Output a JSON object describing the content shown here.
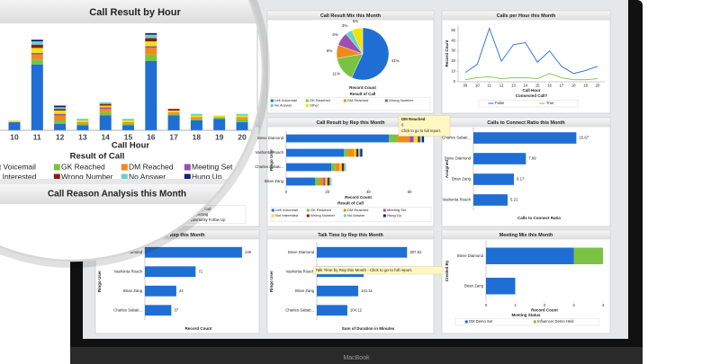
{
  "device_label": "MacBook",
  "chart_data": [
    {
      "type": "bar",
      "stacked": true,
      "title": "Call Result by Hour",
      "categories": [
        "10",
        "11",
        "12",
        "13",
        "14",
        "15",
        "16",
        "17",
        "18",
        "19",
        "20"
      ],
      "ylim": [
        0,
        60
      ],
      "xlabel": "Call Hour",
      "legend_title": "Result of Call",
      "series": [
        {
          "name": "Left Voicemail",
          "color": "#1f6ed4",
          "values": [
            5,
            40,
            4,
            3,
            9,
            3,
            42,
            9,
            6,
            7,
            5
          ]
        },
        {
          "name": "GK Reached",
          "color": "#7cc242",
          "values": [
            0,
            3,
            2,
            1,
            2,
            1,
            4,
            1,
            1,
            1,
            2
          ]
        },
        {
          "name": "DM Reached",
          "color": "#f08a1c",
          "values": [
            0,
            3,
            3,
            1,
            2,
            1,
            4,
            1,
            1,
            0,
            1
          ]
        },
        {
          "name": "Meeting Set",
          "color": "#9b4fb0",
          "values": [
            0,
            1,
            1,
            0,
            1,
            0,
            1,
            0,
            0,
            0,
            0
          ]
        },
        {
          "name": "Not Interested",
          "color": "#f2e20c",
          "values": [
            1,
            3,
            2,
            1,
            1,
            1,
            3,
            1,
            1,
            1,
            1
          ]
        },
        {
          "name": "Wrong Number",
          "color": "#8b1a1a",
          "values": [
            0,
            2,
            1,
            0,
            1,
            0,
            2,
            1,
            0,
            0,
            0
          ]
        },
        {
          "name": "No Answer",
          "color": "#63d6c4",
          "values": [
            0,
            2,
            1,
            1,
            1,
            1,
            2,
            0,
            1,
            0,
            1
          ]
        },
        {
          "name": "Hung Up",
          "color": "#15227a",
          "values": [
            0,
            1,
            1,
            0,
            0,
            0,
            1,
            0,
            0,
            0,
            0
          ]
        }
      ]
    },
    {
      "type": "pie",
      "title": "Call Result Mix this Month",
      "measure_label": "Record Count",
      "legend_title": "Result of Call",
      "categories": [
        "Left Voicemail",
        "GK Reached",
        "DM Reached",
        "Wrong Number",
        "No Answer",
        "Other"
      ],
      "values": [
        41,
        11,
        6,
        6,
        3,
        5
      ],
      "value_labels": [
        "41%",
        "11%",
        "6%",
        "6%",
        "3%",
        "5%"
      ],
      "colors": [
        "#1f6ed4",
        "#7cc242",
        "#f08a1c",
        "#9b4fb0",
        "#63d6c4",
        "#f2e20c"
      ]
    },
    {
      "type": "line",
      "title": "Calls per Hour this Month",
      "ylabel": "Record Count",
      "xlabel": "Call Hour",
      "legend_title": "Connected Call?",
      "x": [
        9,
        10,
        11,
        12,
        13,
        14,
        15,
        16,
        17,
        18,
        19,
        20
      ],
      "xlim": [
        8.4,
        20.6
      ],
      "xticks": [
        {
          "value": 9,
          "label": "09"
        },
        10,
        11,
        12,
        13,
        14,
        15,
        16,
        17,
        18,
        19,
        20
      ],
      "ylim": [
        0,
        55
      ],
      "yticks": [
        0,
        10,
        20,
        30,
        40,
        50
      ],
      "series": [
        {
          "name": "False",
          "color": "#1f6ed4",
          "values": [
            9,
            17,
            52,
            20,
            36,
            38,
            19,
            30,
            15,
            8,
            11,
            15
          ]
        },
        {
          "name": "True",
          "color": "#7cc242",
          "values": [
            2,
            4,
            5,
            3,
            4,
            4,
            3,
            8,
            4,
            2,
            2,
            3
          ]
        }
      ]
    },
    {
      "type": "bar",
      "title": "Call Reason Analysis this Month",
      "series": [
        {
          "name": "Incoming Call",
          "color": "#1f6ed4"
        },
        {
          "name": "Prospecting",
          "color": "#7cc242"
        },
        {
          "name": "Opportunity Follow Up",
          "color": "#f08a1c"
        }
      ]
    },
    {
      "type": "bar",
      "orientation": "horizontal",
      "stacked": true,
      "title": "Call Result by Rep this Month",
      "ylabel": "Ringo User",
      "xlabel": "Record Count",
      "legend_title": "Result of Call",
      "categories": [
        "Steve Diamond",
        "Vashonta Roach",
        "Charles Sabati...",
        "Brian Zang"
      ],
      "xlim": [
        0,
        70
      ],
      "xticks": [
        0,
        20,
        40,
        60
      ],
      "series": [
        {
          "name": "Left Voicemail",
          "color": "#1f6ed4",
          "values": [
            50,
            28,
            22,
            14
          ]
        },
        {
          "name": "GK Reached",
          "color": "#7cc242",
          "values": [
            4,
            2,
            2,
            2
          ]
        },
        {
          "name": "DM Reached",
          "color": "#f08a1c",
          "values": [
            6,
            3,
            2,
            2
          ]
        },
        {
          "name": "Meeting Set",
          "color": "#9b4fb0",
          "values": [
            2,
            0,
            0,
            1
          ]
        },
        {
          "name": "Not Interested",
          "color": "#f2e20c",
          "values": [
            2,
            1,
            1,
            1
          ]
        },
        {
          "name": "Wrong Number",
          "color": "#8b1a1a",
          "values": [
            1,
            1,
            1,
            1
          ]
        },
        {
          "name": "No Answer",
          "color": "#63d6c4",
          "values": [
            1,
            1,
            1,
            1
          ]
        },
        {
          "name": "Hung Up",
          "color": "#15227a",
          "values": [
            1,
            1,
            0,
            0
          ]
        }
      ],
      "tooltip": {
        "title": "DM Reached",
        "value": 6,
        "text": "Click to go to full report."
      }
    },
    {
      "type": "bar",
      "orientation": "horizontal",
      "title": "Calls to Connect Ratio this Month",
      "ylabel": "Assigned",
      "xlabel": "Calls to Connect Ratio",
      "categories": [
        "Charles Sabati...",
        "Steve Diamond",
        "Brian Zang",
        "Vashonta Roach"
      ],
      "values": [
        15.67,
        7.99,
        6.17,
        5.21
      ],
      "color": "#1f6ed4",
      "xlim": [
        0,
        20
      ]
    },
    {
      "type": "bar",
      "orientation": "horizontal",
      "title": "Calls by Rep this Month",
      "ylabel": "Ringo User",
      "xlabel": "Record Count",
      "categories": [
        "Steve Diamond",
        "Vashonta Roach",
        "Brian Zang",
        "Charles Sabati..."
      ],
      "values": [
        136,
        71,
        44,
        37
      ],
      "color": "#1f6ed4",
      "xlim": [
        0,
        150
      ]
    },
    {
      "type": "bar",
      "orientation": "horizontal",
      "title": "Talk Time by Rep this Month",
      "ylabel": "Ringo User",
      "xlabel": "Sum of Duration in Minutes",
      "categories": [
        "Steve Diamond",
        "Vashonta Roach",
        "Brian Zang",
        "Charles Sabati..."
      ],
      "values": [
        307.91,
        160,
        141.11,
        104.12
      ],
      "color": "#1f6ed4",
      "xlim": [
        0,
        350
      ],
      "tooltip": {
        "text": "Talk Time by Rep this Month - Click to go to full report."
      }
    },
    {
      "type": "bar",
      "orientation": "horizontal",
      "stacked": true,
      "title": "Meeting Mix this Month",
      "ylabel": "Created By",
      "xlabel": "Record Count",
      "legend_title": "Meeting Status",
      "categories": [
        "Steve Diamond",
        "Brian Zang"
      ],
      "xlim": [
        0,
        4
      ],
      "xticks": [
        0,
        1,
        2,
        3,
        4
      ],
      "series": [
        {
          "name": "DM Demo Set",
          "color": "#1f6ed4",
          "values": [
            3,
            1
          ]
        },
        {
          "name": "Influencer Demo Held",
          "color": "#7cc242",
          "values": [
            1,
            0
          ]
        }
      ]
    }
  ]
}
